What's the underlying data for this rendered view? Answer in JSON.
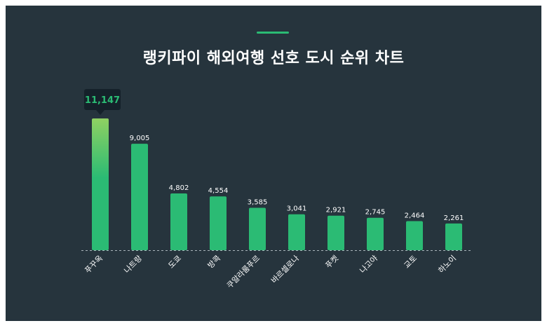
{
  "title": "랭키파이 해외여행 선호 도시 순위 차트",
  "colors": {
    "background": "#26343d",
    "bar": "#2bbb74",
    "bar_top_highlight": "#8fd162",
    "accent": "#2bbb74",
    "tooltip_bg": "#15212a",
    "tooltip_text": "#2bbb74",
    "label_text": "#ffffff"
  },
  "tooltip": {
    "value": "11,147"
  },
  "chart_data": {
    "type": "bar",
    "title": "랭키파이 해외여행 선호 도시 순위 차트",
    "categories": [
      "푸꾸옥",
      "나트랑",
      "도쿄",
      "방콕",
      "쿠알라룸푸르",
      "바르셀로나",
      "푸켓",
      "나고야",
      "교토",
      "하노이"
    ],
    "values": [
      11147,
      9005,
      4802,
      4554,
      3585,
      3041,
      2921,
      2745,
      2464,
      2261
    ],
    "value_labels": [
      "11,147",
      "9,005",
      "4,802",
      "4,554",
      "3,585",
      "3,041",
      "2,921",
      "2,745",
      "2,464",
      "2,261"
    ],
    "highlight_index": 0,
    "xlabel": "",
    "ylabel": "",
    "ylim": [
      0,
      11147
    ],
    "grid": false,
    "legend": "none"
  }
}
